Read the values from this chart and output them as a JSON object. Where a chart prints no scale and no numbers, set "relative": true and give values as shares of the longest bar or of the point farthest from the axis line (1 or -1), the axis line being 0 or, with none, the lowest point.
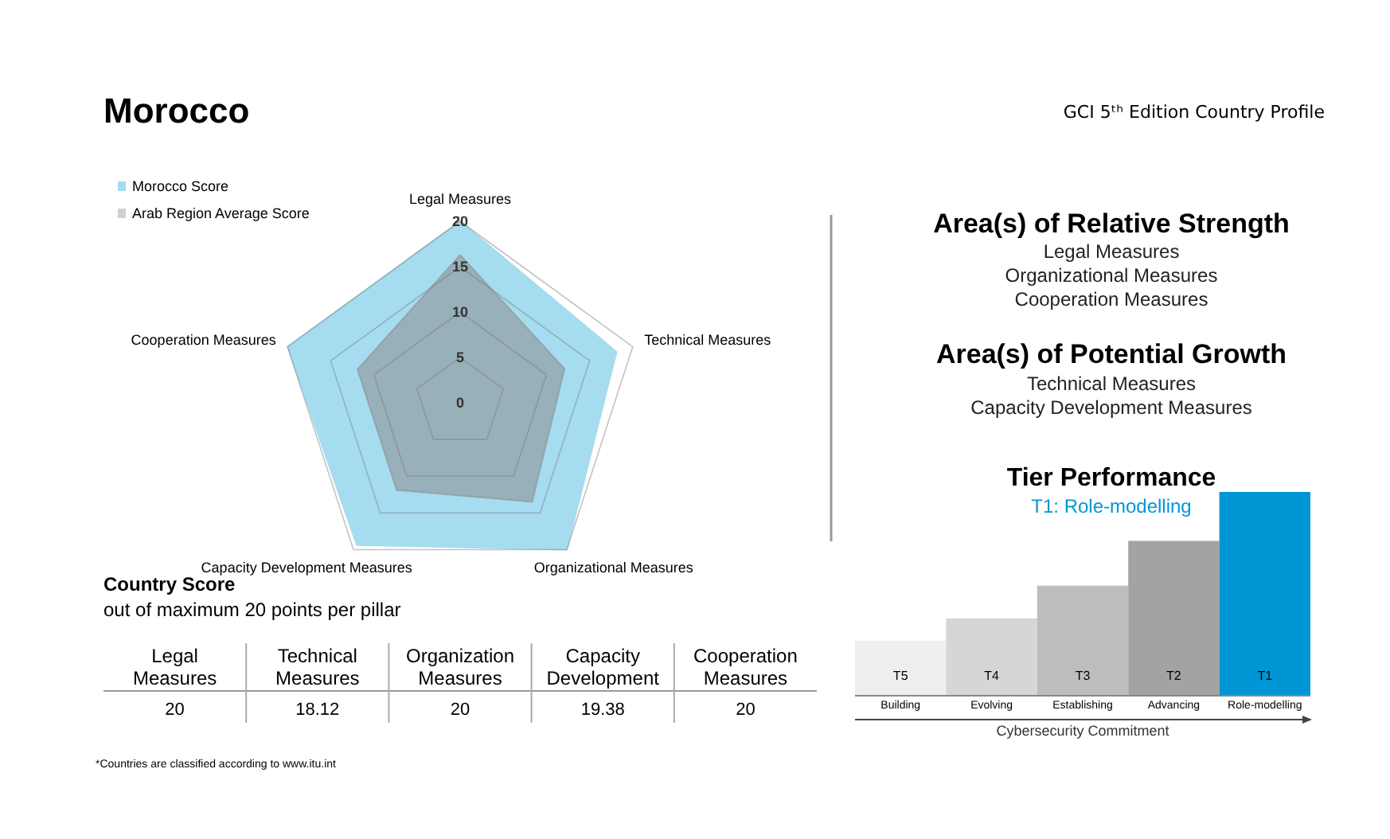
{
  "chart_data": [
    {
      "type": "radar",
      "title": "Morocco",
      "categories": [
        "Legal Measures",
        "Technical Measures",
        "Organizational Measures",
        "Capacity Development Measures",
        "Cooperation Measures"
      ],
      "series": [
        {
          "name": "Morocco Score",
          "color": "#a6dcf0",
          "values": [
            20,
            18.12,
            20,
            19.38,
            20
          ]
        },
        {
          "name": "Arab Region Average Score",
          "color": "#8c8c8c",
          "values": [
            16.3,
            12.1,
            13.5,
            11.9,
            11.9
          ]
        }
      ],
      "ylim": [
        0,
        20
      ],
      "yticks": [
        0,
        5,
        10,
        15,
        20
      ],
      "grid": true,
      "legend": "top left"
    },
    {
      "type": "other",
      "annotations": [
        "GCI 5ᵗʰ Edition Country Profile",
        "Area(s) of Relative Strength",
        "Legal Measures",
        "Organizational Measures",
        "Cooperation Measures",
        "Area(s) of Potential Growth",
        "Technical Measures",
        "Capacity Development Measures"
      ]
    },
    {
      "type": "bar",
      "relative": true,
      "title": "Tier Performance",
      "subtitle": "T1: Role-modelling",
      "xlabel": "Cybersecurity Commitment",
      "categories": [
        "Building",
        "Evolving",
        "Establishing",
        "Advancing",
        "Role-modelling"
      ],
      "values": [
        0.27,
        0.38,
        0.54,
        0.76,
        1
      ],
      "colors": [
        "#eeeeee",
        "#d6d6d6",
        "#bdbdbd",
        "#a3a3a3",
        "#0096d6"
      ],
      "annotations": [
        "T5",
        "T4",
        "T3",
        "T2",
        "T1"
      ]
    },
    {
      "type": "other",
      "title": "Country Score",
      "subtitle": "out of maximum 20 points per pillar",
      "categories": [
        "Legal Measures",
        "Technical Measures",
        "Organization Measures",
        "Capacity Development",
        "Cooperation Measures"
      ],
      "values": [
        20,
        18.12,
        20,
        19.38,
        20
      ],
      "data_labels": true,
      "annotations": [
        "*Countries are classified according to www.itu.int"
      ]
    }
  ]
}
